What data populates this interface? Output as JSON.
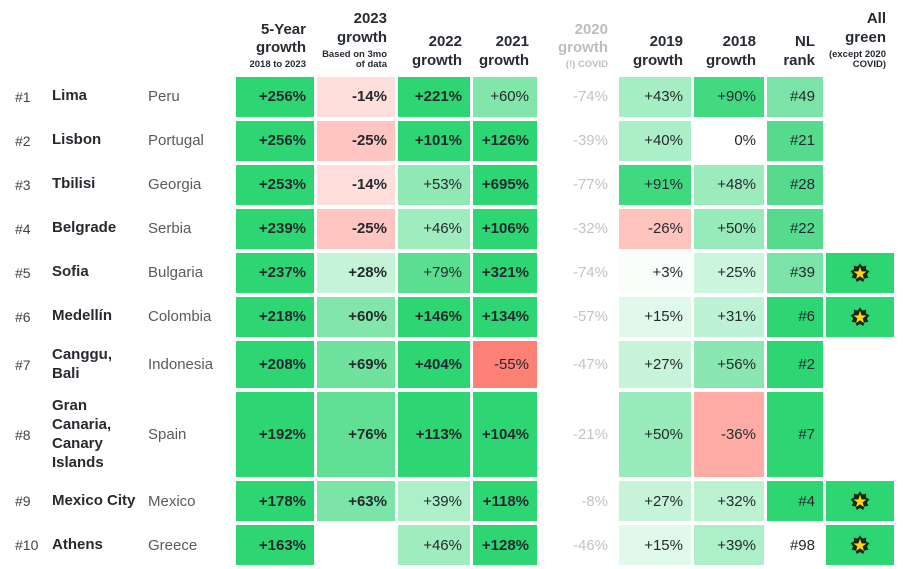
{
  "page": {
    "background": "#FFFFFF"
  },
  "palette": {
    "strong_green": "#2ED573",
    "muted_text": "#C2C3C9",
    "dark_text": "#23292F",
    "star_yellow": "#FFD60A",
    "star_outline": "#14271B"
  },
  "chart_data": {
    "type": "table",
    "description": "City 5-year growth ranking heatmap table",
    "columns": [
      {
        "key": "5-year-growth",
        "title": "5-Year\ngrowth",
        "sub": "2018 to 2023",
        "muted": false
      },
      {
        "key": "2023-growth",
        "title": "2023\ngrowth",
        "sub": "Based on 3mo\nof data",
        "muted": false
      },
      {
        "key": "2022-growth",
        "title": "2022\ngrowth",
        "sub": "",
        "muted": false
      },
      {
        "key": "2021-growth",
        "title": "2021\ngrowth",
        "sub": "",
        "muted": false
      },
      {
        "key": "2020-growth",
        "title": "2020\ngrowth",
        "sub": "(!) COVID",
        "muted": true
      },
      {
        "key": "2019-growth",
        "title": "2019\ngrowth",
        "sub": "",
        "muted": false
      },
      {
        "key": "2018-growth",
        "title": "2018\ngrowth",
        "sub": "",
        "muted": false
      },
      {
        "key": "nl-rank",
        "title": "NL\nrank",
        "sub": "",
        "muted": false
      },
      {
        "key": "all-green",
        "title": "All\ngreen",
        "sub": "(except 2020\nCOVID)",
        "muted": false
      }
    ],
    "rows": [
      {
        "rank": "#1",
        "city": "Lima",
        "country": "Peru",
        "all_green": false,
        "cells": [
          {
            "t": "+256%",
            "bg": "#2ED573"
          },
          {
            "t": "-14%",
            "bg": "#FFDFDC"
          },
          {
            "t": "+221%",
            "bg": "#2ED573"
          },
          {
            "t": "+60%",
            "bg": "#82E6AB"
          },
          {
            "t": "-74%",
            "bg": ""
          },
          {
            "t": "+43%",
            "bg": "#A5EDC3"
          },
          {
            "t": "+90%",
            "bg": "#43D981"
          },
          {
            "t": "#49",
            "bg": "#7BE3A8"
          }
        ]
      },
      {
        "rank": "#2",
        "city": "Lisbon",
        "country": "Portugal",
        "all_green": false,
        "cells": [
          {
            "t": "+256%",
            "bg": "#2ED573"
          },
          {
            "t": "-25%",
            "bg": "#FFC6C1"
          },
          {
            "t": "+101%",
            "bg": "#2ED573"
          },
          {
            "t": "+126%",
            "bg": "#2ED573"
          },
          {
            "t": "-39%",
            "bg": ""
          },
          {
            "t": "+40%",
            "bg": "#ABEEC7"
          },
          {
            "t": "0%",
            "bg": ""
          },
          {
            "t": "#21",
            "bg": "#55DA8E"
          }
        ]
      },
      {
        "rank": "#3",
        "city": "Tbilisi",
        "country": "Georgia",
        "all_green": false,
        "cells": [
          {
            "t": "+253%",
            "bg": "#2ED573"
          },
          {
            "t": "-14%",
            "bg": "#FFDFDC"
          },
          {
            "t": "+53%",
            "bg": "#90E9B5"
          },
          {
            "t": "+695%",
            "bg": "#2ED573"
          },
          {
            "t": "-77%",
            "bg": ""
          },
          {
            "t": "+91%",
            "bg": "#41D980"
          },
          {
            "t": "+48%",
            "bg": "#9BEBBC"
          },
          {
            "t": "#28",
            "bg": "#55DA8E"
          }
        ]
      },
      {
        "rank": "#4",
        "city": "Belgrade",
        "country": "Serbia",
        "all_green": false,
        "cells": [
          {
            "t": "+239%",
            "bg": "#2ED573"
          },
          {
            "t": "-25%",
            "bg": "#FFC6C1"
          },
          {
            "t": "+46%",
            "bg": "#9FECBF"
          },
          {
            "t": "+106%",
            "bg": "#2ED573"
          },
          {
            "t": "-32%",
            "bg": ""
          },
          {
            "t": "-26%",
            "bg": "#FFC3BE"
          },
          {
            "t": "+50%",
            "bg": "#97EAB9"
          },
          {
            "t": "#22",
            "bg": "#55DA8E"
          }
        ]
      },
      {
        "rank": "#5",
        "city": "Sofia",
        "country": "Bulgaria",
        "all_green": true,
        "cells": [
          {
            "t": "+237%",
            "bg": "#2ED573"
          },
          {
            "t": "+28%",
            "bg": "#C4F3D8"
          },
          {
            "t": "+79%",
            "bg": "#5ADE90"
          },
          {
            "t": "+321%",
            "bg": "#2ED573"
          },
          {
            "t": "-74%",
            "bg": ""
          },
          {
            "t": "+3%",
            "bg": "#F9FEFB"
          },
          {
            "t": "+25%",
            "bg": "#CBF5DC"
          },
          {
            "t": "#39",
            "bg": "#7BE3A8"
          }
        ]
      },
      {
        "rank": "#6",
        "city": "Medellín",
        "country": "Colombia",
        "all_green": true,
        "cells": [
          {
            "t": "+218%",
            "bg": "#2ED573"
          },
          {
            "t": "+60%",
            "bg": "#82E6AB"
          },
          {
            "t": "+146%",
            "bg": "#2ED573"
          },
          {
            "t": "+134%",
            "bg": "#2ED573"
          },
          {
            "t": "-57%",
            "bg": ""
          },
          {
            "t": "+15%",
            "bg": "#E0F9EA"
          },
          {
            "t": "+31%",
            "bg": "#BEF2D4"
          },
          {
            "t": "#6",
            "bg": "#2ED573"
          }
        ]
      },
      {
        "rank": "#7",
        "city": "Canggu,\nBali",
        "country": "Indonesia",
        "all_green": false,
        "cells": [
          {
            "t": "+208%",
            "bg": "#2ED573"
          },
          {
            "t": "+69%",
            "bg": "#6FE29E"
          },
          {
            "t": "+404%",
            "bg": "#2ED573"
          },
          {
            "t": "-55%",
            "bg": "#FF8176"
          },
          {
            "t": "-47%",
            "bg": ""
          },
          {
            "t": "+27%",
            "bg": "#C7F4D9"
          },
          {
            "t": "+56%",
            "bg": "#8AE7B1"
          },
          {
            "t": "#2",
            "bg": "#2ED573"
          }
        ]
      },
      {
        "rank": "#8",
        "city": "Gran\nCanaria,\nCanary\nIslands",
        "country": "Spain",
        "all_green": false,
        "cells": [
          {
            "t": "+192%",
            "bg": "#2ED573"
          },
          {
            "t": "+76%",
            "bg": "#60DF95"
          },
          {
            "t": "+113%",
            "bg": "#2ED573"
          },
          {
            "t": "+104%",
            "bg": "#2ED573"
          },
          {
            "t": "-21%",
            "bg": ""
          },
          {
            "t": "+50%",
            "bg": "#97EAB9"
          },
          {
            "t": "-36%",
            "bg": "#FFACA6"
          },
          {
            "t": "#7",
            "bg": "#2ED573"
          }
        ]
      },
      {
        "rank": "#9",
        "city": "Mexico City",
        "country": "Mexico",
        "all_green": true,
        "cells": [
          {
            "t": "+178%",
            "bg": "#2ED573"
          },
          {
            "t": "+63%",
            "bg": "#7BE5A7"
          },
          {
            "t": "+39%",
            "bg": "#ADEFC8"
          },
          {
            "t": "+118%",
            "bg": "#2ED573"
          },
          {
            "t": "-8%",
            "bg": ""
          },
          {
            "t": "+27%",
            "bg": "#C7F4D9"
          },
          {
            "t": "+32%",
            "bg": "#BCF2D2"
          },
          {
            "t": "#4",
            "bg": "#2ED573"
          }
        ]
      },
      {
        "rank": "#10",
        "city": "Athens",
        "country": "Greece",
        "all_green": true,
        "cells": [
          {
            "t": "+163%",
            "bg": "#2ED573"
          },
          {
            "t": "",
            "bg": ""
          },
          {
            "t": "+46%",
            "bg": "#9FECBF"
          },
          {
            "t": "+128%",
            "bg": "#2ED573"
          },
          {
            "t": "-46%",
            "bg": ""
          },
          {
            "t": "+15%",
            "bg": "#E0F9EA"
          },
          {
            "t": "+39%",
            "bg": "#ADEFC8"
          },
          {
            "t": "#98",
            "bg": ""
          }
        ]
      }
    ]
  }
}
